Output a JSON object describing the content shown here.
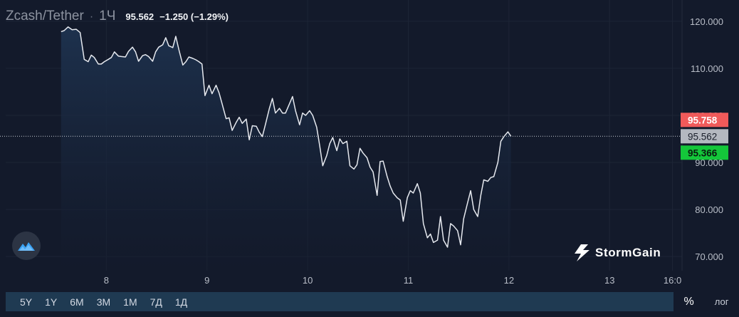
{
  "header": {
    "pair": "Zcash/Tether",
    "separator": "·",
    "interval": "1Ч",
    "last_price": "95.562",
    "change": "−1.250 (−1.29%)"
  },
  "brand": {
    "name": "StormGain"
  },
  "timeframes": [
    "5Y",
    "1Y",
    "6M",
    "3M",
    "1M",
    "7Д",
    "1Д"
  ],
  "scale_toggle": {
    "percent": "%",
    "log": "лог"
  },
  "colors": {
    "background": "#131a2b",
    "line": "#e6e9ef",
    "area_top": "#1e3350",
    "ask": "#f05a5a",
    "bid": "#14c73a",
    "last": "#b4b8c0",
    "toolbar": "#1f3a52"
  },
  "chart_data": {
    "type": "area",
    "title": "Zcash/Tether",
    "xlabel": "",
    "ylabel": "",
    "ylim": [
      67,
      123
    ],
    "x_ticks": [
      {
        "label": "8",
        "x": 8
      },
      {
        "label": "9",
        "x": 9
      },
      {
        "label": "10",
        "x": 10
      },
      {
        "label": "11",
        "x": 11
      },
      {
        "label": "12",
        "x": 12
      },
      {
        "label": "13",
        "x": 13
      },
      {
        "label": "16:0",
        "x": 13.625
      }
    ],
    "y_ticks": [
      "120.000",
      "110.000",
      "100.000",
      "90.000",
      "80.000",
      "70.000"
    ],
    "y_tick_values": [
      120,
      110,
      100,
      90,
      80,
      70
    ],
    "grid": true,
    "price_labels": [
      {
        "name": "ask",
        "label": "95.758",
        "value": 95.758
      },
      {
        "name": "last",
        "label": "95.562",
        "value": 95.562
      },
      {
        "name": "bid",
        "label": "95.366",
        "value": 95.366
      }
    ],
    "series": [
      {
        "points": [
          [
            7.55,
            117.8
          ],
          [
            7.58,
            118.0
          ],
          [
            7.62,
            118.8
          ],
          [
            7.66,
            118.2
          ],
          [
            7.7,
            118.3
          ],
          [
            7.74,
            117.6
          ],
          [
            7.78,
            111.9
          ],
          [
            7.82,
            111.4
          ],
          [
            7.85,
            112.8
          ],
          [
            7.88,
            112.3
          ],
          [
            7.92,
            110.9
          ],
          [
            7.95,
            110.9
          ],
          [
            7.98,
            111.4
          ],
          [
            8.02,
            111.9
          ],
          [
            8.05,
            112.3
          ],
          [
            8.08,
            113.5
          ],
          [
            8.12,
            112.6
          ],
          [
            8.15,
            112.5
          ],
          [
            8.19,
            112.4
          ],
          [
            8.22,
            113.6
          ],
          [
            8.26,
            114.5
          ],
          [
            8.29,
            113.5
          ],
          [
            8.32,
            111.5
          ],
          [
            8.36,
            112.7
          ],
          [
            8.39,
            112.9
          ],
          [
            8.42,
            112.5
          ],
          [
            8.46,
            111.5
          ],
          [
            8.49,
            113.5
          ],
          [
            8.52,
            114.5
          ],
          [
            8.56,
            115.0
          ],
          [
            8.59,
            116.5
          ],
          [
            8.62,
            114.8
          ],
          [
            8.66,
            114.4
          ],
          [
            8.69,
            116.8
          ],
          [
            8.72,
            114.0
          ],
          [
            8.76,
            110.7
          ],
          [
            8.79,
            111.4
          ],
          [
            8.82,
            112.4
          ],
          [
            8.86,
            112.1
          ],
          [
            8.89,
            111.8
          ],
          [
            8.92,
            111.4
          ],
          [
            8.95,
            110.9
          ],
          [
            8.98,
            104.2
          ],
          [
            9.02,
            106.4
          ],
          [
            9.05,
            104.6
          ],
          [
            9.09,
            106.4
          ],
          [
            9.12,
            104.8
          ],
          [
            9.15,
            102.5
          ],
          [
            9.19,
            99.3
          ],
          [
            9.22,
            99.5
          ],
          [
            9.25,
            96.8
          ],
          [
            9.29,
            98.5
          ],
          [
            9.32,
            99.6
          ],
          [
            9.35,
            98.3
          ],
          [
            9.39,
            99.2
          ],
          [
            9.42,
            94.8
          ],
          [
            9.45,
            97.8
          ],
          [
            9.49,
            97.7
          ],
          [
            9.52,
            96.4
          ],
          [
            9.55,
            95.5
          ],
          [
            9.58,
            98.0
          ],
          [
            9.62,
            101.5
          ],
          [
            9.65,
            103.6
          ],
          [
            9.68,
            100.5
          ],
          [
            9.72,
            101.5
          ],
          [
            9.75,
            100.5
          ],
          [
            9.78,
            100.5
          ],
          [
            9.82,
            102.5
          ],
          [
            9.85,
            104.0
          ],
          [
            9.88,
            101.0
          ],
          [
            9.92,
            98.0
          ],
          [
            9.95,
            100.5
          ],
          [
            9.98,
            100.0
          ],
          [
            10.02,
            101.0
          ],
          [
            10.05,
            100.0
          ],
          [
            10.09,
            97.5
          ],
          [
            10.12,
            93.5
          ],
          [
            10.15,
            89.3
          ],
          [
            10.19,
            91.5
          ],
          [
            10.22,
            94.0
          ],
          [
            10.25,
            95.3
          ],
          [
            10.29,
            92.5
          ],
          [
            10.32,
            95.0
          ],
          [
            10.35,
            94.0
          ],
          [
            10.39,
            94.5
          ],
          [
            10.42,
            89.3
          ],
          [
            10.46,
            88.6
          ],
          [
            10.49,
            89.5
          ],
          [
            10.52,
            93.0
          ],
          [
            10.55,
            92.0
          ],
          [
            10.59,
            91.0
          ],
          [
            10.62,
            89.0
          ],
          [
            10.65,
            88.0
          ],
          [
            10.69,
            83.0
          ],
          [
            10.72,
            90.2
          ],
          [
            10.75,
            90.3
          ],
          [
            10.79,
            87.0
          ],
          [
            10.82,
            85.0
          ],
          [
            10.85,
            83.5
          ],
          [
            10.89,
            82.5
          ],
          [
            10.92,
            82.0
          ],
          [
            10.95,
            77.5
          ],
          [
            10.99,
            82.5
          ],
          [
            11.02,
            84.0
          ],
          [
            11.05,
            83.5
          ],
          [
            11.09,
            85.5
          ],
          [
            11.12,
            83.5
          ],
          [
            11.15,
            77.0
          ],
          [
            11.19,
            74.0
          ],
          [
            11.22,
            74.8
          ],
          [
            11.25,
            73.0
          ],
          [
            11.29,
            73.5
          ],
          [
            11.32,
            78.5
          ],
          [
            11.35,
            73.5
          ],
          [
            11.39,
            72.0
          ],
          [
            11.42,
            77.0
          ],
          [
            11.45,
            76.5
          ],
          [
            11.49,
            75.5
          ],
          [
            11.52,
            72.5
          ],
          [
            11.55,
            78.0
          ],
          [
            11.59,
            81.5
          ],
          [
            11.62,
            84.0
          ],
          [
            11.65,
            80.0
          ],
          [
            11.69,
            78.5
          ],
          [
            11.72,
            83.0
          ],
          [
            11.75,
            86.3
          ],
          [
            11.79,
            86.0
          ],
          [
            11.82,
            86.8
          ],
          [
            11.85,
            87.0
          ],
          [
            11.89,
            90.0
          ],
          [
            11.92,
            94.5
          ],
          [
            11.95,
            95.5
          ],
          [
            11.99,
            96.5
          ],
          [
            12.02,
            95.562
          ]
        ]
      }
    ]
  }
}
